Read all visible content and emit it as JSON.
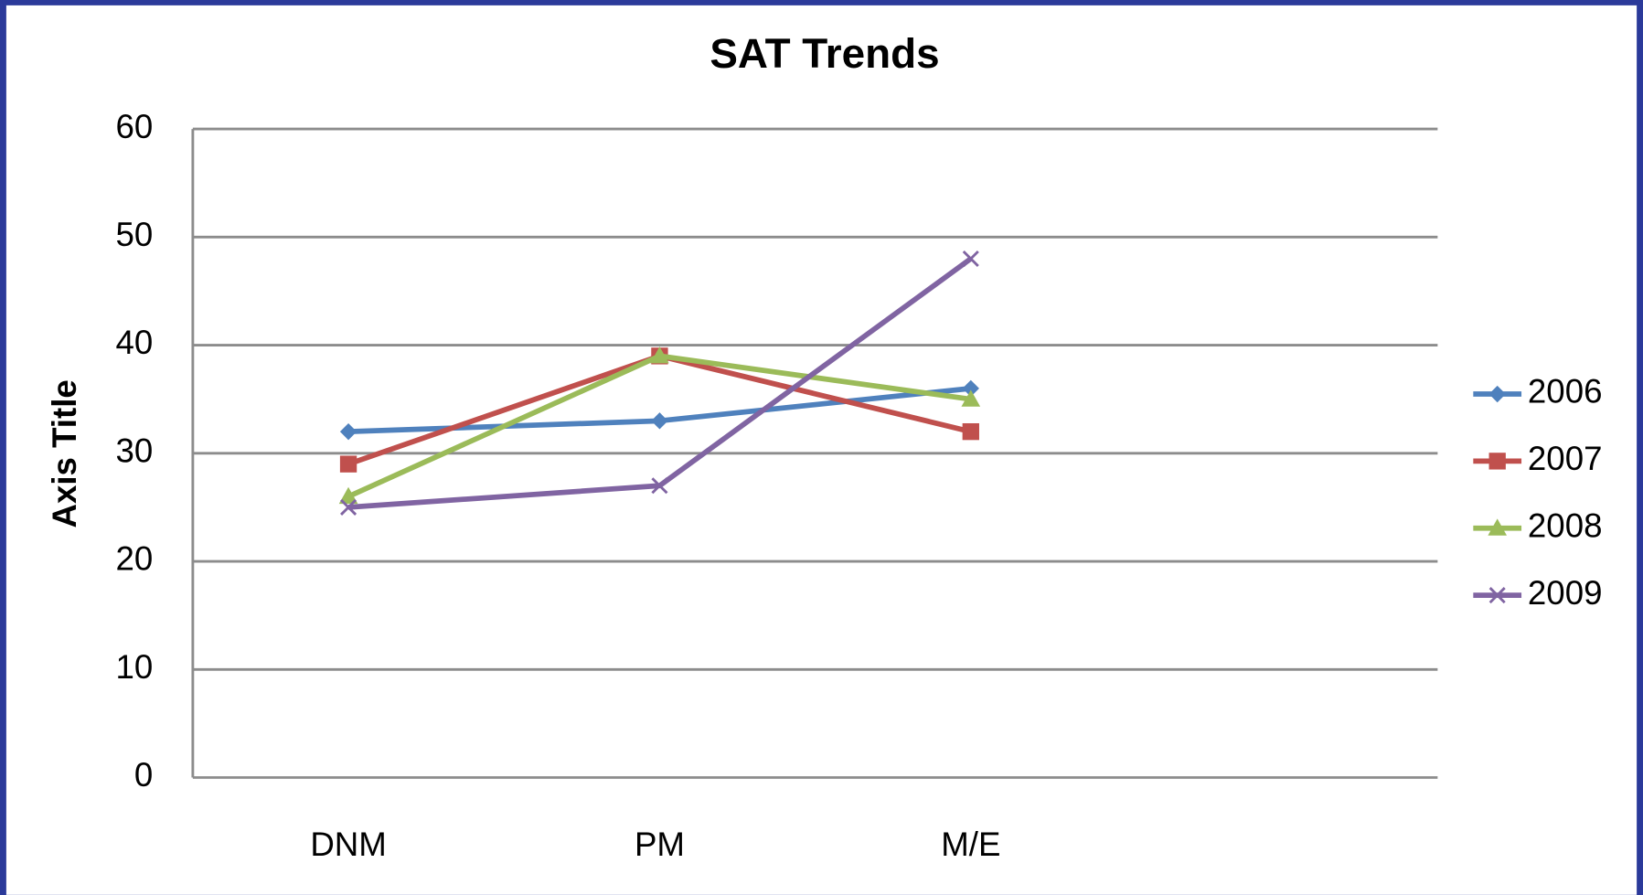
{
  "chart_data": {
    "type": "line",
    "title": "SAT Trends",
    "y_label": "Axis Title",
    "categories": [
      "DNM",
      "PM",
      "M/E",
      null
    ],
    "series": [
      {
        "name": "2006",
        "color": "#4f81bd",
        "marker": "diamond",
        "values": [
          32,
          33,
          36,
          null
        ]
      },
      {
        "name": "2007",
        "color": "#c0504d",
        "marker": "square",
        "values": [
          29,
          39,
          32,
          null
        ]
      },
      {
        "name": "2008",
        "color": "#9bbb59",
        "marker": "triangle",
        "values": [
          26,
          39,
          35,
          null
        ]
      },
      {
        "name": "2009",
        "color": "#8064a2",
        "marker": "x",
        "values": [
          25,
          27,
          48,
          null
        ]
      }
    ],
    "ylim": [
      0,
      60
    ],
    "yticks": [
      0,
      10,
      20,
      30,
      40,
      50,
      60
    ],
    "grid": true,
    "legend": "right"
  }
}
